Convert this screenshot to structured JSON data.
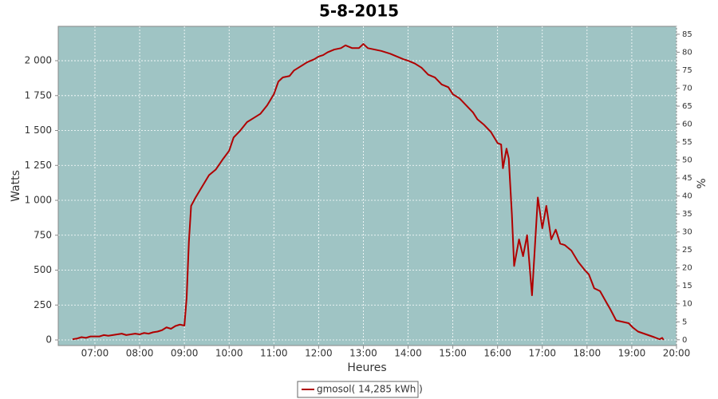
{
  "chart_data": {
    "type": "line",
    "title": "5-8-2015",
    "x_label": "Heures",
    "y_label": "Watts",
    "y2_label": "%",
    "x": [
      6.5,
      6.6,
      6.7,
      6.8,
      6.9,
      7.0,
      7.1,
      7.2,
      7.3,
      7.4,
      7.5,
      7.6,
      7.7,
      7.8,
      7.9,
      8.0,
      8.1,
      8.2,
      8.3,
      8.4,
      8.5,
      8.6,
      8.7,
      8.8,
      8.9,
      9.0,
      9.05,
      9.1,
      9.15,
      9.25,
      9.4,
      9.55,
      9.7,
      9.85,
      10.0,
      10.1,
      10.25,
      10.4,
      10.55,
      10.7,
      10.85,
      11.0,
      11.1,
      11.2,
      11.35,
      11.45,
      11.6,
      11.75,
      11.9,
      12.0,
      12.1,
      12.2,
      12.35,
      12.5,
      12.6,
      12.75,
      12.9,
      13.0,
      13.1,
      13.25,
      13.4,
      13.5,
      13.6,
      13.75,
      13.9,
      14.0,
      14.15,
      14.3,
      14.45,
      14.6,
      14.75,
      14.9,
      15.0,
      15.15,
      15.3,
      15.45,
      15.55,
      15.7,
      15.85,
      16.0,
      16.08,
      16.12,
      16.2,
      16.25,
      16.32,
      16.37,
      16.48,
      16.57,
      16.66,
      16.77,
      16.9,
      17.0,
      17.09,
      17.2,
      17.3,
      17.4,
      17.5,
      17.65,
      17.8,
      17.95,
      18.04,
      18.16,
      18.29,
      18.43,
      18.52,
      18.65,
      18.79,
      18.93,
      19.02,
      19.14,
      19.32,
      19.5,
      19.62,
      19.68,
      19.71
    ],
    "series": [
      {
        "name": "gmosol( 14,285 kWh )",
        "color": "#b00000",
        "values": [
          5,
          10,
          20,
          15,
          25,
          25,
          25,
          35,
          30,
          35,
          40,
          45,
          35,
          40,
          45,
          40,
          50,
          45,
          55,
          60,
          70,
          90,
          80,
          100,
          110,
          103,
          300,
          700,
          960,
          1020,
          1100,
          1180,
          1220,
          1290,
          1355,
          1450,
          1500,
          1560,
          1590,
          1620,
          1680,
          1760,
          1850,
          1880,
          1890,
          1930,
          1960,
          1990,
          2010,
          2030,
          2040,
          2060,
          2080,
          2090,
          2110,
          2090,
          2090,
          2120,
          2090,
          2080,
          2070,
          2060,
          2050,
          2030,
          2010,
          2000,
          1980,
          1950,
          1900,
          1880,
          1830,
          1810,
          1760,
          1730,
          1680,
          1630,
          1580,
          1540,
          1490,
          1410,
          1400,
          1230,
          1370,
          1300,
          900,
          530,
          720,
          600,
          750,
          320,
          1020,
          800,
          960,
          720,
          790,
          690,
          680,
          640,
          560,
          500,
          470,
          370,
          350,
          270,
          220,
          140,
          130,
          120,
          90,
          60,
          40,
          20,
          5,
          15,
          0
        ]
      }
    ],
    "xlim": [
      6.18,
      20
    ],
    "xticks": [
      {
        "value": 7,
        "label": "07:00"
      },
      {
        "value": 8,
        "label": "08:00"
      },
      {
        "value": 9,
        "label": "09:00"
      },
      {
        "value": 10,
        "label": "10:00"
      },
      {
        "value": 11,
        "label": "11:00"
      },
      {
        "value": 12,
        "label": "12:00"
      },
      {
        "value": 13,
        "label": "13:00"
      },
      {
        "value": 14,
        "label": "14:00"
      },
      {
        "value": 15,
        "label": "15:00"
      },
      {
        "value": 16,
        "label": "16:00"
      },
      {
        "value": 17,
        "label": "17:00"
      },
      {
        "value": 18,
        "label": "18:00"
      },
      {
        "value": 19,
        "label": "19:00"
      },
      {
        "value": 20,
        "label": "20:00"
      }
    ],
    "ylim": [
      -40,
      2246
    ],
    "yticks": [
      0,
      250,
      500,
      750,
      {
        "value": 1000,
        "label": "1 000"
      },
      {
        "value": 1250,
        "label": "1 250"
      },
      {
        "value": 1500,
        "label": "1 500"
      },
      {
        "value": 1750,
        "label": "1 750"
      },
      {
        "value": 2000,
        "label": "2 000"
      }
    ],
    "y2lim": [
      -1.6,
      87.2
    ],
    "y2ticks": [
      0,
      5,
      10,
      15,
      20,
      25,
      30,
      35,
      40,
      45,
      50,
      55,
      60,
      65,
      70,
      75,
      80,
      85
    ],
    "grid": true,
    "background": "#9fc4c4"
  }
}
